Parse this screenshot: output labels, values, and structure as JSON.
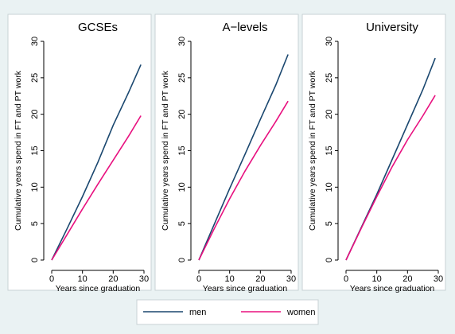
{
  "chart_data": [
    {
      "type": "line",
      "title": "GCSEs",
      "x_label": "Years since graduation",
      "y_label": "Cumulative years spend in FT and PT work",
      "x": [
        0,
        5,
        10,
        15,
        20,
        25,
        29
      ],
      "series": [
        {
          "name": "men",
          "color": "#1a476f",
          "values": [
            0,
            4.3,
            8.7,
            13.4,
            18.5,
            23,
            26.8
          ]
        },
        {
          "name": "women",
          "color": "#e8107f",
          "values": [
            0,
            3.5,
            7,
            10.4,
            13.7,
            17,
            19.8
          ]
        }
      ],
      "xlim": [
        0,
        30
      ],
      "ylim": [
        0,
        30
      ],
      "xticks": [
        0,
        10,
        20,
        30
      ],
      "yticks": [
        0,
        5,
        10,
        15,
        20,
        25,
        30
      ]
    },
    {
      "type": "line",
      "title": "A−levels",
      "x_label": "Years since graduation",
      "y_label": "Cumulative years spend in FT and PT work",
      "x": [
        0,
        5,
        10,
        15,
        20,
        25,
        29
      ],
      "series": [
        {
          "name": "men",
          "color": "#1a476f",
          "values": [
            0,
            4.9,
            9.8,
            14.5,
            19.3,
            24,
            28.2
          ]
        },
        {
          "name": "women",
          "color": "#e8107f",
          "values": [
            0,
            4.3,
            8.4,
            12.2,
            15.7,
            19,
            21.8
          ]
        }
      ],
      "xlim": [
        0,
        30
      ],
      "ylim": [
        0,
        30
      ],
      "xticks": [
        0,
        10,
        20,
        30
      ],
      "yticks": [
        0,
        5,
        10,
        15,
        20,
        25,
        30
      ]
    },
    {
      "type": "line",
      "title": "University",
      "x_label": "Years since graduation",
      "y_label": "Cumulative years spend in FT and PT work",
      "x": [
        0,
        5,
        10,
        15,
        20,
        25,
        29
      ],
      "series": [
        {
          "name": "men",
          "color": "#1a476f",
          "values": [
            0,
            4.5,
            9,
            13.8,
            18.6,
            23.4,
            27.7
          ]
        },
        {
          "name": "women",
          "color": "#e8107f",
          "values": [
            0,
            4.4,
            8.7,
            12.8,
            16.5,
            19.8,
            22.6
          ]
        }
      ],
      "xlim": [
        0,
        30
      ],
      "ylim": [
        0,
        30
      ],
      "xticks": [
        0,
        10,
        20,
        30
      ],
      "yticks": [
        0,
        5,
        10,
        15,
        20,
        25,
        30
      ]
    }
  ]
}
